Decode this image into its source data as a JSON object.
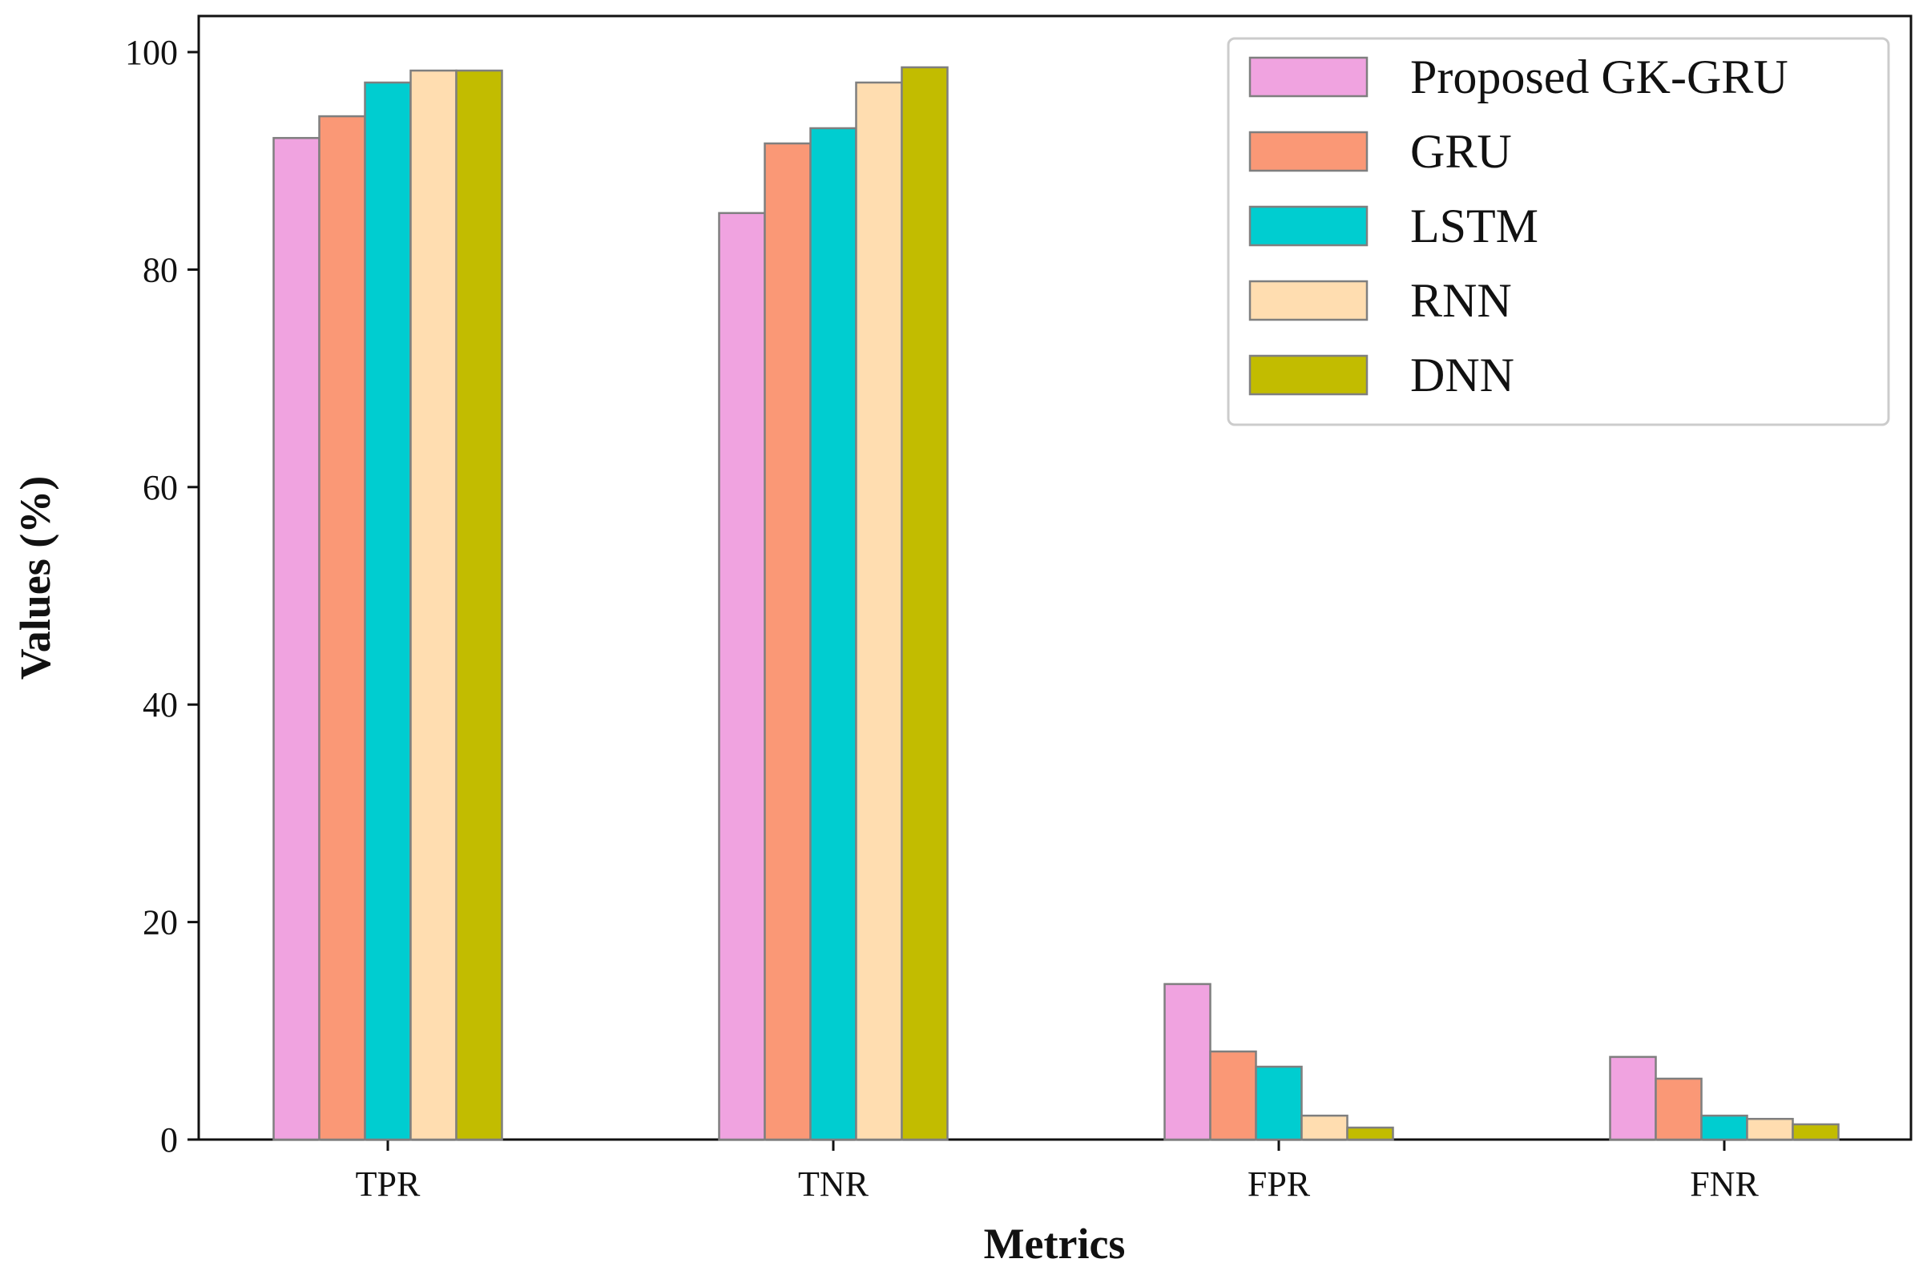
{
  "chart_data": {
    "type": "bar",
    "title": "",
    "xlabel": "Metrics",
    "ylabel": "Values (%)",
    "ylim": [
      0,
      100
    ],
    "yticks": [
      0,
      20,
      40,
      60,
      80,
      100
    ],
    "categories": [
      "TPR",
      "TNR",
      "FPR",
      "FNR"
    ],
    "legend_position": "top-right",
    "grid": false,
    "series": [
      {
        "name": "Proposed GK-GRU",
        "color": "#F0A3E0",
        "values": [
          92.1,
          85.2,
          14.3,
          7.6
        ]
      },
      {
        "name": "GRU",
        "color": "#FA9876",
        "values": [
          94.1,
          91.6,
          8.1,
          5.6
        ]
      },
      {
        "name": "LSTM",
        "color": "#00CDD0",
        "values": [
          97.2,
          93.0,
          6.7,
          2.2
        ]
      },
      {
        "name": "RNN",
        "color": "#FFDDB0",
        "values": [
          98.3,
          97.2,
          2.2,
          1.9
        ]
      },
      {
        "name": "DNN",
        "color": "#C2BC00",
        "values": [
          98.3,
          98.6,
          1.1,
          1.4
        ]
      }
    ]
  }
}
